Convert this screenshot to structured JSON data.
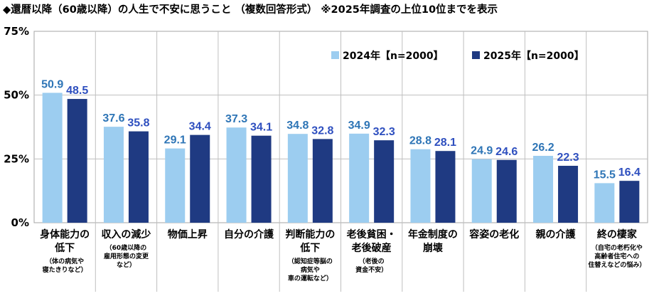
{
  "chart_data": {
    "type": "bar",
    "title": "◆還暦以降（60歳以降）の人生で不安に思うこと （複数回答形式） ※2025年調査の上位10位までを表示",
    "y_ticks": [
      "0%",
      "25%",
      "50%",
      "75%"
    ],
    "ylim": [
      0,
      75
    ],
    "grid": true,
    "legend_position": "top-right",
    "categories": [
      {
        "label": [
          "身体能力の",
          "低下"
        ],
        "note": [
          "（体の病気や",
          "寝たきりなど）"
        ]
      },
      {
        "label": [
          "収入の減少"
        ],
        "note": [
          "（60歳以降の",
          "雇用形態の変更",
          "など）"
        ]
      },
      {
        "label": [
          "物価上昇"
        ],
        "note": []
      },
      {
        "label": [
          "自分の介護"
        ],
        "note": []
      },
      {
        "label": [
          "判断能力の",
          "低下"
        ],
        "note": [
          "（認知症等脳の",
          "病気や",
          "車の運転など）"
        ]
      },
      {
        "label": [
          "老後貧困・",
          "老後破産"
        ],
        "note": [
          "（老後の",
          "資金不安）"
        ]
      },
      {
        "label": [
          "年金制度の",
          "崩壊"
        ],
        "note": []
      },
      {
        "label": [
          "容姿の老化"
        ],
        "note": []
      },
      {
        "label": [
          "親の介護"
        ],
        "note": []
      },
      {
        "label": [
          "終の棲家"
        ],
        "note": [
          "（自宅の老朽化や",
          "高齢者住宅への",
          "住替えなどの悩み）"
        ]
      }
    ],
    "series": [
      {
        "name": "2024年【n=2000】",
        "color": "#9ccdf0",
        "label_color": "#2e75b6",
        "values": [
          50.9,
          37.6,
          29.1,
          37.3,
          34.8,
          34.9,
          28.8,
          24.9,
          26.2,
          15.5
        ]
      },
      {
        "name": "2025年【n=2000】",
        "color": "#1f3a82",
        "label_color": "#2e4fbf",
        "values": [
          48.5,
          35.8,
          34.4,
          34.1,
          32.8,
          32.3,
          28.1,
          24.6,
          22.3,
          16.4
        ]
      }
    ]
  }
}
